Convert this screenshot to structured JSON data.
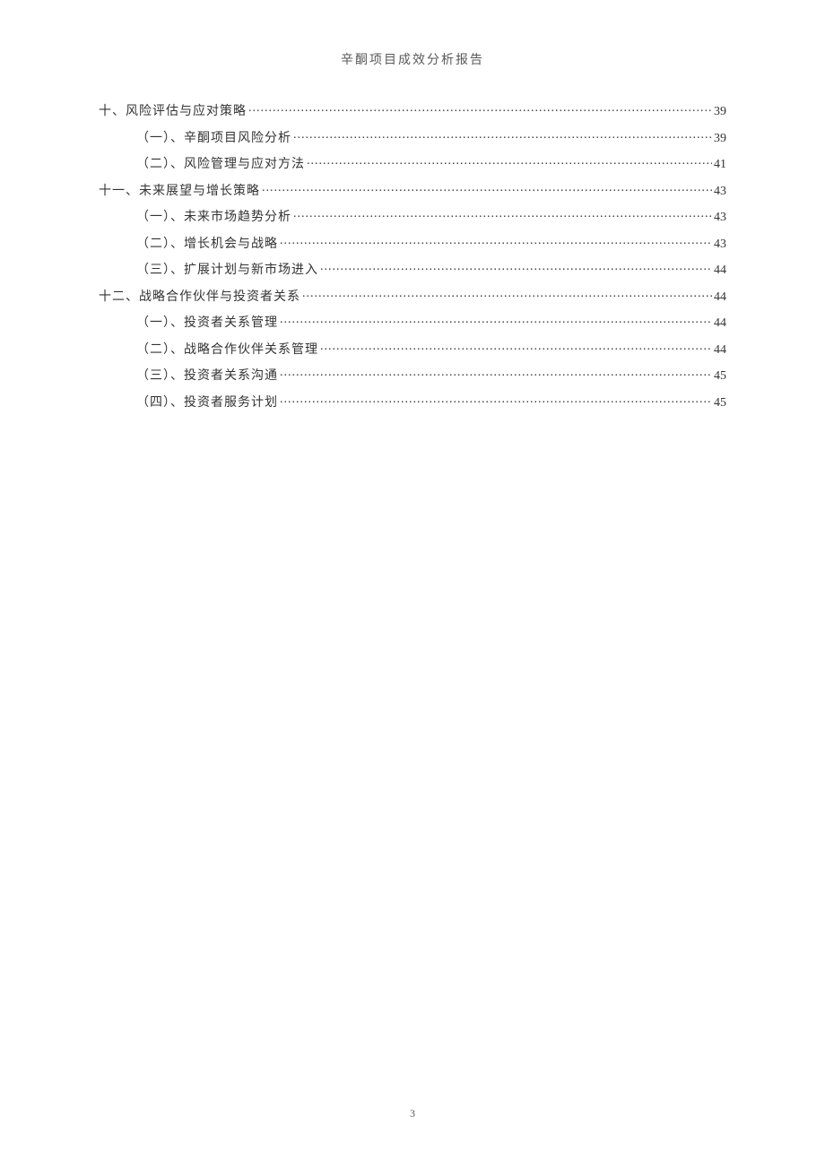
{
  "doc": {
    "header_title": "辛酮项目成效分析报告",
    "page_number": "3",
    "text_color": "#333333",
    "header_color": "#595959",
    "background_color": "#ffffff",
    "font_family": "SimSun",
    "header_fontsize": 14,
    "toc_fontsize": 14,
    "pagenum_fontsize": 12
  },
  "toc": {
    "entries": [
      {
        "level": 1,
        "label": "十、风险评估与应对策略",
        "page": "39"
      },
      {
        "level": 2,
        "label": "（一）、辛酮项目风险分析",
        "page": "39"
      },
      {
        "level": 2,
        "label": "（二）、风险管理与应对方法",
        "page": "41"
      },
      {
        "level": 1,
        "label": "十一、未来展望与增长策略",
        "page": "43"
      },
      {
        "level": 2,
        "label": "（一）、未来市场趋势分析",
        "page": "43"
      },
      {
        "level": 2,
        "label": "（二）、增长机会与战略",
        "page": "43"
      },
      {
        "level": 2,
        "label": "（三）、扩展计划与新市场进入",
        "page": "44"
      },
      {
        "level": 1,
        "label": "十二、战略合作伙伴与投资者关系",
        "page": "44"
      },
      {
        "level": 2,
        "label": "（一）、投资者关系管理",
        "page": "44"
      },
      {
        "level": 2,
        "label": "（二）、战略合作伙伴关系管理",
        "page": "44"
      },
      {
        "level": 2,
        "label": "（三）、投资者关系沟通",
        "page": "45"
      },
      {
        "level": 2,
        "label": "（四）、投资者服务计划",
        "page": "45"
      }
    ]
  }
}
